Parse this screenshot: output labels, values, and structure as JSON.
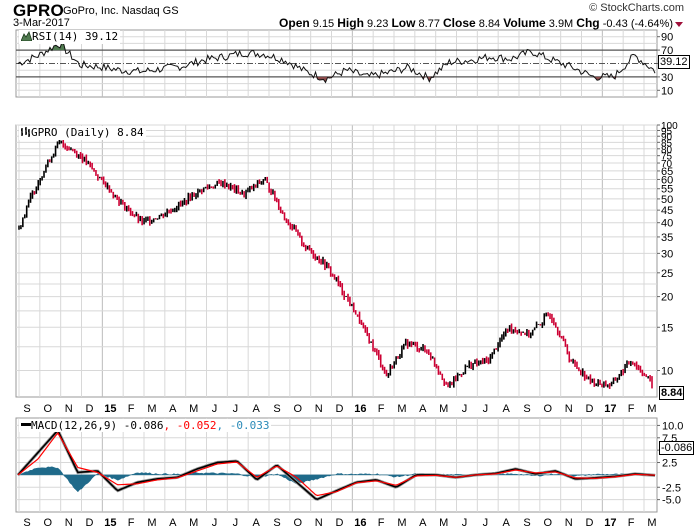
{
  "header": {
    "symbol": "GPRO",
    "company": "GoPro, Inc. Nasdaq GS",
    "date": "3-Mar-2017",
    "copyright": "© StockCharts.com",
    "open_label": "Open",
    "open": "9.15",
    "high_label": "High",
    "high": "9.23",
    "low_label": "Low",
    "low": "8.77",
    "close_label": "Close",
    "close": "8.84",
    "volume_label": "Volume",
    "volume": "3.9M",
    "chg_label": "Chg",
    "chg": "-0.43 (-4.64%)",
    "chg_direction": "down"
  },
  "colors": {
    "up_bar": "#000000",
    "down_bar": "#cc0033",
    "rsi_overbought_fill": "#4f7a4f",
    "rsi_oversold_fill": "#8b4a4a",
    "macd_line": "#000000",
    "signal_line": "#ff0000",
    "histogram": "#1f6a8a",
    "grid": "#d8d8d8"
  },
  "x_axis_labels": [
    "S",
    "O",
    "N",
    "D",
    "15",
    "F",
    "M",
    "A",
    "M",
    "J",
    "J",
    "A",
    "S",
    "O",
    "N",
    "D",
    "16",
    "F",
    "M",
    "A",
    "M",
    "J",
    "J",
    "A",
    "S",
    "O",
    "N",
    "D",
    "17",
    "F",
    "M"
  ],
  "chart_data": [
    {
      "type": "line",
      "title": "RSI(14) 39.12",
      "panel": "rsi",
      "legend": "RSI(14) 39.12",
      "current_value": "39.12",
      "ylim": [
        0,
        100
      ],
      "y_ticks": [
        "90",
        "70",
        "50",
        "30",
        "10"
      ],
      "reference_lines": [
        70,
        50,
        30
      ],
      "x": [
        "2014-08",
        "2014-09",
        "2014-10",
        "2014-11",
        "2014-12",
        "2015-01",
        "2015-02",
        "2015-03",
        "2015-04",
        "2015-05",
        "2015-06",
        "2015-07",
        "2015-08",
        "2015-09",
        "2015-10",
        "2015-11",
        "2015-12",
        "2016-01",
        "2016-02",
        "2016-03",
        "2016-04",
        "2016-05",
        "2016-06",
        "2016-07",
        "2016-08",
        "2016-09",
        "2016-10",
        "2016-11",
        "2016-12",
        "2017-01",
        "2017-02",
        "2017-03"
      ],
      "values": [
        50,
        62,
        80,
        48,
        45,
        40,
        38,
        42,
        46,
        55,
        60,
        66,
        64,
        55,
        38,
        27,
        40,
        30,
        36,
        44,
        28,
        52,
        55,
        60,
        57,
        68,
        55,
        44,
        30,
        30,
        62,
        39
      ]
    },
    {
      "type": "bar",
      "title": "GPRO (Daily) 8.84",
      "panel": "price",
      "legend": "GPRO (Daily) 8.84",
      "chart_style": "OHLC bars, log scale",
      "current_value": "8.84",
      "y_scale": "log",
      "ylim": [
        7.8,
        100
      ],
      "y_ticks": [
        "100",
        "95",
        "90",
        "85",
        "80",
        "75",
        "70",
        "65",
        "60",
        "55",
        "50",
        "45",
        "40",
        "35",
        "30",
        "25",
        "20",
        "15",
        "10"
      ],
      "x": [
        "2014-08",
        "2014-09",
        "2014-10",
        "2014-11",
        "2014-12",
        "2015-01",
        "2015-02",
        "2015-03",
        "2015-04",
        "2015-05",
        "2015-06",
        "2015-07",
        "2015-08",
        "2015-09",
        "2015-10",
        "2015-11",
        "2015-12",
        "2016-01",
        "2016-02",
        "2016-03",
        "2016-04",
        "2016-05",
        "2016-06",
        "2016-07",
        "2016-08",
        "2016-09",
        "2016-10",
        "2016-11",
        "2016-12",
        "2017-01",
        "2017-02",
        "2017-03"
      ],
      "values": [
        38,
        60,
        85,
        75,
        60,
        48,
        40,
        43,
        48,
        55,
        58,
        52,
        60,
        42,
        32,
        27,
        20,
        14,
        9.5,
        13,
        12,
        8.5,
        10.5,
        11,
        15,
        14,
        17,
        11,
        9,
        8.7,
        11,
        8.84
      ]
    },
    {
      "type": "line",
      "title": "MACD(12,26,9) -0.086, -0.052, -0.033",
      "panel": "macd",
      "legend": [
        "MACD(12,26,9) -0.086",
        "-0.052",
        "-0.033"
      ],
      "series": [
        {
          "name": "MACD",
          "color": "#000000",
          "values": [
            0,
            4.5,
            9,
            0.5,
            0.8,
            -3.2,
            -1.5,
            -0.8,
            -0.5,
            1.2,
            2.5,
            2.8,
            -1,
            2,
            -1.5,
            -5,
            -3.2,
            -1.5,
            -1,
            -2.5,
            0,
            0,
            -0.5,
            0,
            0.3,
            1.2,
            0.2,
            0.8,
            -0.8,
            -0.6,
            -0.3,
            0.2,
            -0.086
          ]
        },
        {
          "name": "Signal",
          "color": "#ff0000",
          "values": [
            0,
            3.2,
            8.5,
            1.5,
            0.5,
            -2,
            -1.8,
            -1,
            -0.6,
            0.8,
            2.2,
            2.6,
            -0.5,
            1.8,
            -0.5,
            -4.2,
            -3.4,
            -1.6,
            -1.2,
            -2.1,
            -0.2,
            -0.1,
            -0.5,
            0,
            0.2,
            1,
            0.4,
            0.6,
            -0.6,
            -0.7,
            -0.4,
            0.1,
            -0.052
          ]
        },
        {
          "name": "Histogram",
          "color": "#1f6a8a",
          "values": [
            0,
            1.5,
            1.5,
            -3.5,
            0.3,
            -1,
            0.5,
            0.2,
            0.1,
            0.4,
            0.3,
            0.2,
            -0.5,
            0.2,
            -1.8,
            -0.8,
            0.2,
            0.1,
            0.2,
            -0.4,
            0.2,
            0.1,
            0,
            0,
            0.1,
            0.2,
            -0.2,
            0.2,
            -0.2,
            0.1,
            0.1,
            0.1,
            -0.033
          ]
        }
      ],
      "current_value": "-0.086",
      "ylim": [
        -7.5,
        11.5
      ],
      "y_ticks": [
        "10.0",
        "7.5",
        "5.0",
        "2.5",
        "-2.5",
        "-5.0"
      ]
    }
  ]
}
